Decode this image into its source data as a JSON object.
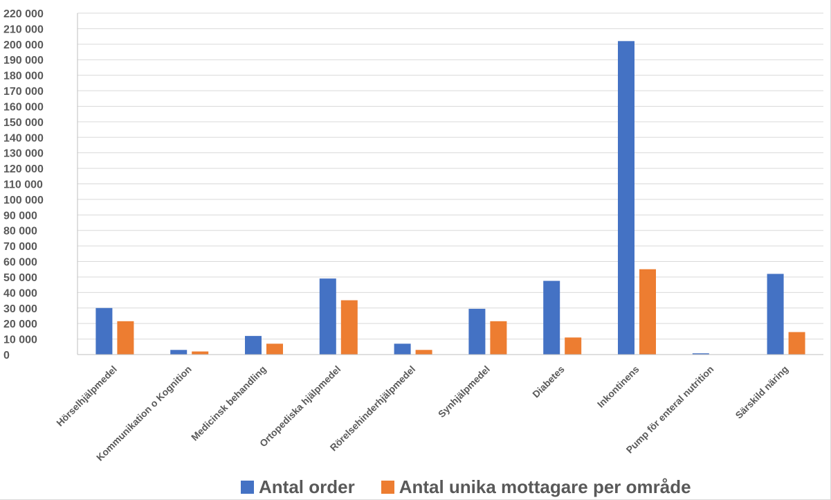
{
  "chart_data": {
    "type": "bar",
    "title": "",
    "xlabel": "",
    "ylabel": "",
    "ylim": [
      0,
      220000
    ],
    "ytick_step": 10000,
    "yticks": [
      "0",
      "10 000",
      "20 000",
      "30 000",
      "40 000",
      "50 000",
      "60 000",
      "70 000",
      "80 000",
      "90 000",
      "100 000",
      "110 000",
      "120 000",
      "130 000",
      "140 000",
      "150 000",
      "160 000",
      "170 000",
      "180 000",
      "190 000",
      "200 000",
      "210 000",
      "220 000"
    ],
    "grid": true,
    "legend_position": "bottom",
    "categories": [
      "Hörselhjälpmedel",
      "Kommunikation o Kognition",
      "Medicinsk behandling",
      "Ortopediska hjälpmedel",
      "Rörelsehinderhjälpmedel",
      "Synhjälpmedel",
      "Diabetes",
      "Inkontinens",
      "Pump för enteral nutrition",
      "Särskild näring"
    ],
    "series": [
      {
        "name": "Antal order",
        "color": "#4472c4",
        "values": [
          30000,
          3000,
          12000,
          49000,
          7000,
          29500,
          47500,
          202000,
          800,
          52000
        ]
      },
      {
        "name": "Antal unika mottagare per område",
        "color": "#ed7d31",
        "values": [
          21500,
          2000,
          7000,
          35000,
          3000,
          21500,
          11000,
          55000,
          0,
          14500
        ]
      }
    ]
  }
}
